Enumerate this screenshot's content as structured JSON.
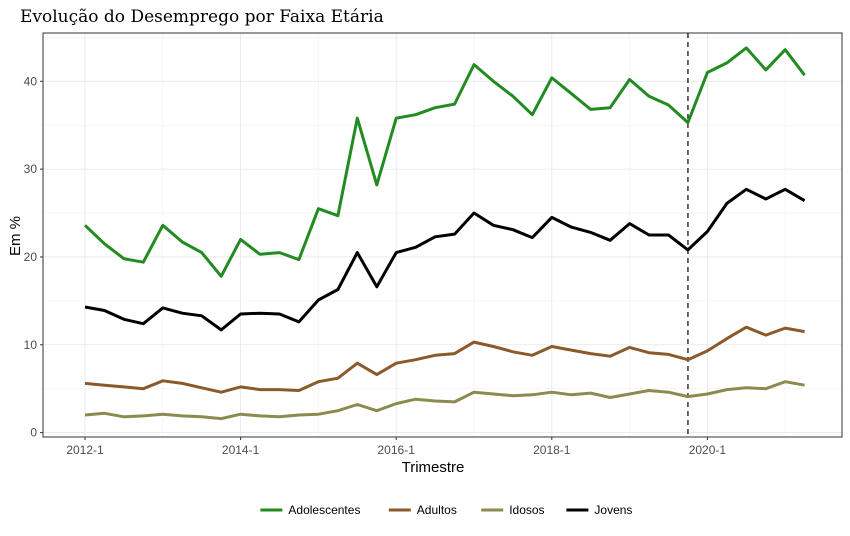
{
  "chart_data": {
    "type": "line",
    "title": "Evolução do Desemprego por Faixa Etária",
    "xlabel": "Trimestre",
    "ylabel": "Em %",
    "x_tick_labels": [
      "2012-1",
      "2014-1",
      "2016-1",
      "2018-1",
      "2020-1"
    ],
    "y_ticks": [
      0,
      10,
      20,
      30,
      40
    ],
    "ylim": [
      -0.5,
      45.5
    ],
    "grid": true,
    "legend_position": "bottom",
    "vertical_reference_line": {
      "at_quarter_index": 31,
      "style": "dashed"
    },
    "x": [
      "2012-1",
      "2012-2",
      "2012-3",
      "2012-4",
      "2013-1",
      "2013-2",
      "2013-3",
      "2013-4",
      "2014-1",
      "2014-2",
      "2014-3",
      "2014-4",
      "2015-1",
      "2015-2",
      "2015-3",
      "2015-4",
      "2016-1",
      "2016-2",
      "2016-3",
      "2016-4",
      "2017-1",
      "2017-2",
      "2017-3",
      "2017-4",
      "2018-1",
      "2018-2",
      "2018-3",
      "2018-4",
      "2019-1",
      "2019-2",
      "2019-3",
      "2019-4",
      "2020-1",
      "2020-2",
      "2020-3",
      "2020-4",
      "2021-1",
      "2021-2"
    ],
    "series": [
      {
        "name": "Adolescentes",
        "color": "#228B22",
        "values": [
          23.6,
          21.5,
          19.8,
          19.4,
          23.6,
          21.7,
          20.5,
          17.8,
          22.0,
          20.3,
          20.5,
          19.7,
          25.5,
          24.7,
          35.8,
          28.2,
          35.8,
          36.2,
          37.0,
          37.4,
          41.9,
          40.0,
          38.3,
          36.2,
          40.4,
          38.6,
          36.8,
          37.0,
          40.2,
          38.3,
          37.3,
          35.3,
          41.0,
          42.1,
          43.8,
          41.3,
          43.6,
          40.7
        ]
      },
      {
        "name": "Adultos",
        "color": "#8B5A2B",
        "values": [
          5.6,
          5.4,
          5.2,
          5.0,
          5.9,
          5.6,
          5.1,
          4.6,
          5.2,
          4.9,
          4.9,
          4.8,
          5.8,
          6.2,
          7.9,
          6.6,
          7.9,
          8.3,
          8.8,
          9.0,
          10.3,
          9.8,
          9.2,
          8.8,
          9.8,
          9.4,
          9.0,
          8.7,
          9.7,
          9.1,
          8.9,
          8.3,
          9.3,
          10.7,
          12.0,
          11.1,
          11.9,
          11.5
        ]
      },
      {
        "name": "Idosos",
        "color": "#8B8B4F",
        "values": [
          2.0,
          2.2,
          1.8,
          1.9,
          2.1,
          1.9,
          1.8,
          1.6,
          2.1,
          1.9,
          1.8,
          2.0,
          2.1,
          2.5,
          3.2,
          2.5,
          3.3,
          3.8,
          3.6,
          3.5,
          4.6,
          4.4,
          4.2,
          4.3,
          4.6,
          4.3,
          4.5,
          4.0,
          4.4,
          4.8,
          4.6,
          4.1,
          4.4,
          4.9,
          5.1,
          5.0,
          5.8,
          5.4
        ]
      },
      {
        "name": "Jovens",
        "color": "#000000",
        "values": [
          14.3,
          13.9,
          12.9,
          12.4,
          14.2,
          13.6,
          13.3,
          11.7,
          13.5,
          13.6,
          13.5,
          12.6,
          15.1,
          16.3,
          20.5,
          16.6,
          20.5,
          21.1,
          22.3,
          22.6,
          25.0,
          23.6,
          23.1,
          22.2,
          24.5,
          23.4,
          22.8,
          21.9,
          23.8,
          22.5,
          22.5,
          20.8,
          22.9,
          26.1,
          27.7,
          26.6,
          27.7,
          26.4
        ]
      }
    ]
  }
}
